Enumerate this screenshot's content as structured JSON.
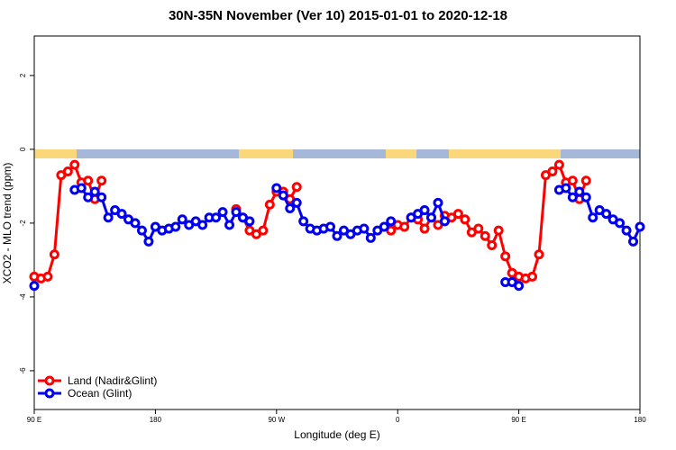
{
  "chart_data": {
    "type": "line",
    "title": "30N-35N November (Ver 10)   2015-01-01 to 2020-12-18",
    "xlabel": "Longitude (deg E)",
    "ylabel": "XCO2 - MLO trend (ppm)",
    "x": [
      90,
      95,
      100,
      105,
      110,
      115,
      120,
      125,
      130,
      135,
      140,
      145,
      150,
      155,
      160,
      165,
      170,
      175,
      180,
      185,
      190,
      195,
      200,
      205,
      210,
      215,
      220,
      225,
      230,
      235,
      240,
      245,
      250,
      255,
      260,
      265,
      270,
      275,
      280,
      285,
      290,
      295,
      300,
      305,
      310,
      315,
      320,
      325,
      330,
      335,
      340,
      345,
      350,
      355,
      360,
      365,
      370,
      375,
      380,
      385,
      390,
      395,
      400,
      405,
      410,
      415,
      420,
      425,
      430,
      435,
      440,
      445,
      450,
      455,
      460,
      465,
      470,
      475,
      480,
      485,
      490,
      495,
      500,
      505,
      510,
      515,
      520,
      525,
      530,
      535,
      540
    ],
    "xlim": [
      90,
      540
    ],
    "xticks": [
      {
        "value": 90,
        "label": "90 E"
      },
      {
        "value": 180,
        "label": "180"
      },
      {
        "value": 270,
        "label": "90 W"
      },
      {
        "value": 360,
        "label": "0"
      },
      {
        "value": 450,
        "label": "90 E"
      },
      {
        "value": 540,
        "label": "180"
      }
    ],
    "ylim": [
      -7.05,
      3.07
    ],
    "yticks": [
      2,
      0,
      -2,
      -4,
      -6
    ],
    "legend": "bottom-left",
    "series": [
      {
        "name": "Land (Nadir&Glint)",
        "color": "#ff0000",
        "values": [
          -3.45,
          -3.5,
          -3.45,
          -2.85,
          -0.7,
          -0.6,
          -0.42,
          -0.9,
          -0.85,
          -1.35,
          -0.85,
          null,
          null,
          null,
          null,
          null,
          null,
          null,
          null,
          null,
          null,
          null,
          null,
          null,
          null,
          null,
          null,
          null,
          null,
          null,
          -1.62,
          -1.85,
          -2.2,
          -2.3,
          -2.2,
          -1.5,
          -1.15,
          -1.15,
          -1.35,
          -1.02,
          null,
          null,
          null,
          null,
          null,
          null,
          null,
          null,
          null,
          null,
          null,
          null,
          null,
          -2.2,
          -2.05,
          -2.1,
          -1.85,
          -1.9,
          -2.15,
          -1.85,
          -2.05,
          -1.8,
          -1.85,
          -1.75,
          -1.9,
          -2.25,
          -2.15,
          -2.35,
          -2.6,
          -2.2,
          -2.9,
          -3.35,
          -3.45,
          -3.5,
          -3.45,
          -2.85,
          -0.7,
          -0.6,
          -0.42,
          -0.9,
          -0.85,
          -1.35,
          -0.85,
          null,
          null,
          null,
          null,
          null,
          null,
          null,
          null
        ]
      },
      {
        "name": "Ocean (Glint)",
        "color": "#0000ee",
        "values": [
          -3.7,
          null,
          null,
          null,
          null,
          null,
          -1.1,
          -1.05,
          -1.3,
          -1.15,
          -1.3,
          -1.85,
          -1.65,
          -1.75,
          -1.9,
          -2.0,
          -2.2,
          -2.5,
          -2.1,
          -2.2,
          -2.15,
          -2.1,
          -1.9,
          -2.05,
          -1.95,
          -2.05,
          -1.85,
          -1.85,
          -1.7,
          -2.05,
          -1.7,
          -1.85,
          -1.95,
          null,
          null,
          null,
          -1.05,
          -1.25,
          -1.6,
          -1.45,
          -1.95,
          -2.15,
          -2.2,
          -2.15,
          -2.1,
          -2.35,
          -2.2,
          -2.3,
          -2.2,
          -2.15,
          -2.4,
          -2.2,
          -2.1,
          -1.95,
          null,
          null,
          -1.85,
          -1.75,
          -1.65,
          -1.85,
          -1.45,
          -1.95,
          null,
          null,
          null,
          null,
          null,
          null,
          null,
          null,
          -3.6,
          -3.6,
          -3.7,
          null,
          null,
          null,
          null,
          null,
          -1.1,
          -1.05,
          -1.3,
          -1.15,
          -1.3,
          -1.85,
          -1.65,
          -1.75,
          -1.9,
          -2.0,
          -2.2,
          -2.5,
          -2.1
        ]
      }
    ]
  }
}
